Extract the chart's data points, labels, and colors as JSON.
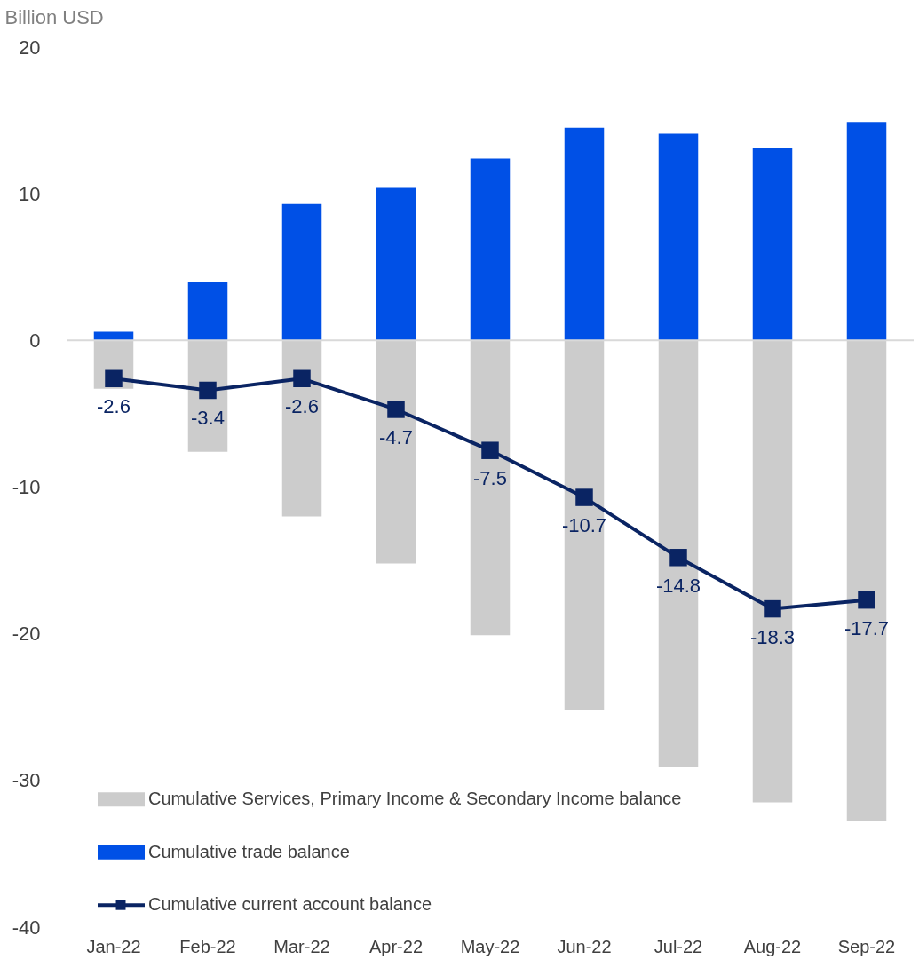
{
  "chart_data": {
    "type": "bar",
    "ylabel": "Billion USD",
    "categories": [
      "Jan-22",
      "Feb-22",
      "Mar-22",
      "Apr-22",
      "May-22",
      "Jun-22",
      "Jul-22",
      "Aug-22",
      "Sep-22"
    ],
    "stacked": true,
    "series": [
      {
        "name": "Cumulative Services, Primary Income & Secondary Income balance",
        "color": "#cccccc",
        "values": [
          -3.3,
          -7.6,
          -12.0,
          -15.2,
          -20.1,
          -25.2,
          -29.1,
          -31.5,
          -32.8
        ]
      },
      {
        "name": "Cumulative trade balance",
        "color": "#0050e6",
        "values": [
          0.6,
          4.0,
          9.3,
          10.4,
          12.4,
          14.5,
          14.1,
          13.1,
          14.9
        ]
      },
      {
        "name": "Cumulative current account balance",
        "type": "line",
        "color": "#0a2463",
        "marker": "square",
        "values": [
          -2.6,
          -3.4,
          -2.6,
          -4.7,
          -7.5,
          -10.7,
          -14.8,
          -18.3,
          -17.7
        ],
        "value_labels": [
          "-2.6",
          "-3.4",
          "-2.6",
          "-4.7",
          "-7.5",
          "-10.7",
          "-14.8",
          "-18.3",
          "-17.7"
        ]
      }
    ],
    "ylim": [
      -40,
      20
    ],
    "yticks": [
      -40,
      -30,
      -20,
      -10,
      0,
      10,
      20
    ],
    "ref_lines": [
      {
        "axis": "y",
        "value": 0,
        "color": "#d9d9d9"
      }
    ],
    "legend": "bottom left"
  }
}
